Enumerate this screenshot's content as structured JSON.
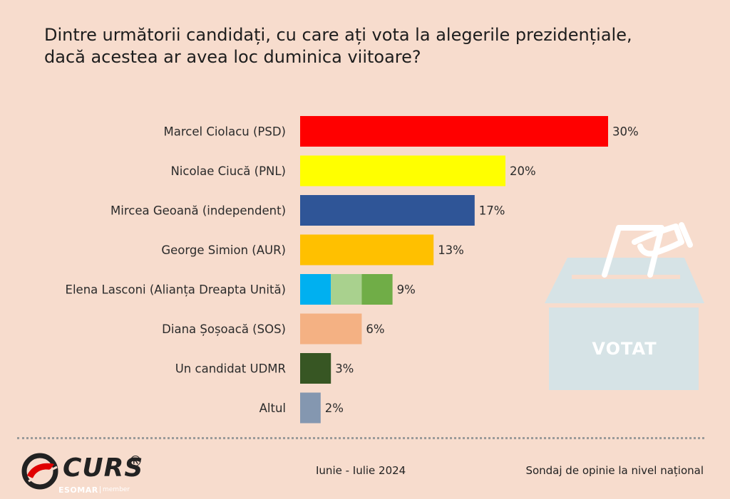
{
  "header": {
    "title_line1": "Dintre următorii candidați, cu care ați vota la alegerile prezidențiale,",
    "title_line2": "dacă acestea ar avea loc duminica viitoare?"
  },
  "chart_data": {
    "type": "bar",
    "orientation": "horizontal",
    "title": "Dintre următorii candidați, cu care ați vota la alegerile prezidențiale, dacă acestea ar avea loc duminica viitoare?",
    "categories": [
      "Marcel Ciolacu (PSD)",
      "Nicolae Ciucă (PNL)",
      "Mircea Geoană (independent)",
      "George Simion (AUR)",
      "Elena Lasconi (Alianța Dreapta Unită)",
      "Diana Șoșoacă (SOS)",
      "Un candidat UDMR",
      "Altul"
    ],
    "values": [
      30,
      20,
      17,
      13,
      9,
      6,
      3,
      2
    ],
    "value_labels": [
      "30%",
      "20%",
      "17%",
      "13%",
      "9%",
      "6%",
      "3%",
      "2%"
    ],
    "colors": [
      [
        "#ff0000"
      ],
      [
        "#ffff00"
      ],
      [
        "#2f5597"
      ],
      [
        "#ffc000"
      ],
      [
        "#00b0f0",
        "#a9d18e",
        "#70ad47"
      ],
      [
        "#f4b183"
      ],
      [
        "#375623"
      ],
      [
        "#8497b0"
      ]
    ],
    "xlim": [
      0,
      30
    ],
    "xlabel": "",
    "ylabel": "",
    "grid": false
  },
  "ballot_box": {
    "label": "VOTAT",
    "color": "#d6e3e6",
    "icon": "ballot-box-icon"
  },
  "footer": {
    "brand": "CURS",
    "brand_mark": "®",
    "esomar": "ESOMAR",
    "member": "member",
    "period": "Iunie - Iulie 2024",
    "survey_type": "Sondaj de opinie la nivel național"
  }
}
